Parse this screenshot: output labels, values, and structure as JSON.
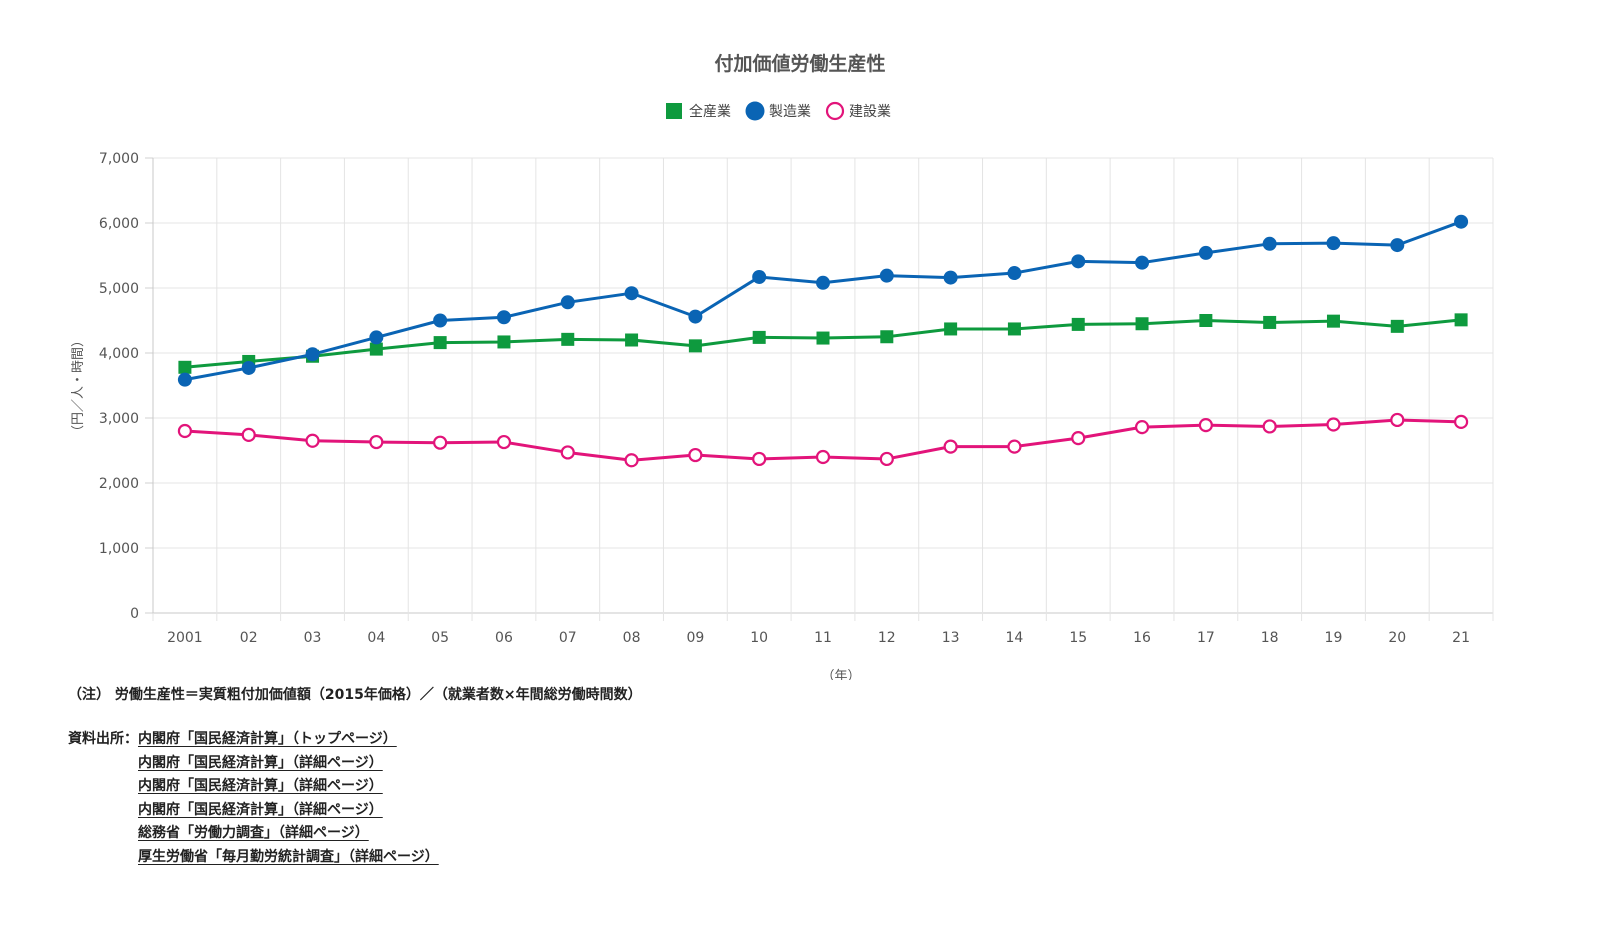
{
  "chart_data": {
    "type": "line",
    "title": "付加価値労働生産性",
    "ylabel": "（円／人・時間）",
    "xlabel": "（年）",
    "categories": [
      "2001",
      "02",
      "03",
      "04",
      "05",
      "06",
      "07",
      "08",
      "09",
      "10",
      "11",
      "12",
      "13",
      "14",
      "15",
      "16",
      "17",
      "18",
      "19",
      "20",
      "21"
    ],
    "ylim": [
      0,
      7000
    ],
    "yticks": [
      0,
      1000,
      2000,
      3000,
      4000,
      5000,
      6000,
      7000
    ],
    "ytick_labels": [
      "0",
      "1,000",
      "2,000",
      "3,000",
      "4,000",
      "5,000",
      "6,000",
      "7,000"
    ],
    "grid": true,
    "legend_position": "top-center",
    "series": [
      {
        "name": "全産業",
        "color": "#0e9a3e",
        "marker": "square",
        "values": [
          3780,
          3870,
          3950,
          4060,
          4160,
          4170,
          4210,
          4200,
          4110,
          4240,
          4230,
          4250,
          4370,
          4370,
          4440,
          4450,
          4500,
          4470,
          4490,
          4410,
          4510
        ]
      },
      {
        "name": "製造業",
        "color": "#0a64b4",
        "marker": "circle",
        "values": [
          3590,
          3770,
          3980,
          4240,
          4500,
          4550,
          4780,
          4920,
          4560,
          5170,
          5080,
          5190,
          5160,
          5230,
          5410,
          5390,
          5540,
          5680,
          5690,
          5660,
          6020
        ]
      },
      {
        "name": "建設業",
        "color": "#e2147a",
        "marker": "open-circle",
        "values": [
          2800,
          2740,
          2650,
          2630,
          2620,
          2630,
          2470,
          2350,
          2430,
          2370,
          2400,
          2370,
          2560,
          2560,
          2690,
          2860,
          2890,
          2870,
          2900,
          2970,
          2940
        ]
      }
    ]
  },
  "note": "（注） 労働生産性＝実質粗付加価値額（2015年価格）／（就業者数×年間総労働時間数）",
  "sources": {
    "label": "資料出所：",
    "items": [
      "内閣府「国民経済計算」（トップページ）",
      "内閣府「国民経済計算」（詳細ページ）",
      "内閣府「国民経済計算」（詳細ページ）",
      "内閣府「国民経済計算」（詳細ページ）",
      "総務省「労働力調査」（詳細ページ）",
      "厚生労働省「毎月勤労統計調査」（詳細ページ）"
    ]
  }
}
